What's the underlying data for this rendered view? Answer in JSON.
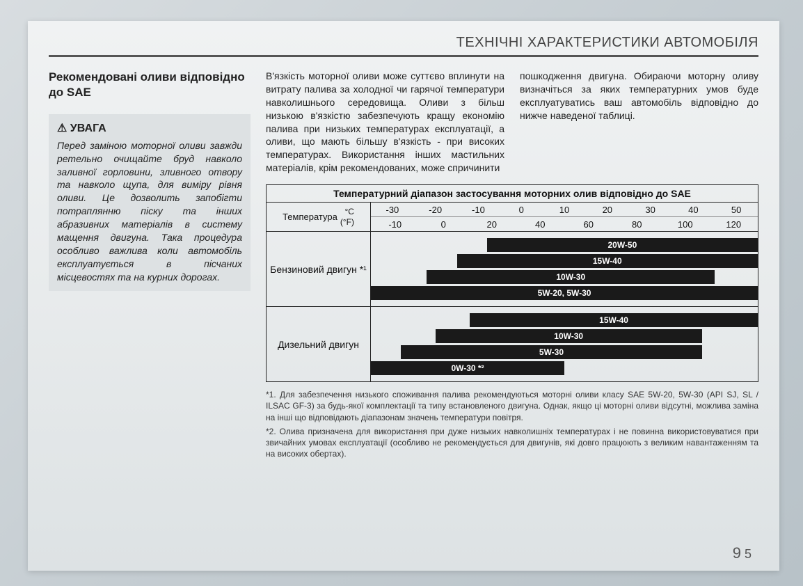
{
  "header": "ТЕХНІЧНІ ХАРАКТЕРИСТИКИ АВТОМОБІЛЯ",
  "section_title": "Рекомендовані оливи відповідно до SAE",
  "warning": {
    "title": "УВАГА",
    "body": "Перед заміною моторної оливи завжди ретельно очищайте бруд навколо заливної горловини, зливного отвору та навколо щупа, для виміру рівня оливи. Це дозволить запобігти потраплянню піску та інших абразивних матеріалів в систему мащення двигуна. Така процедура особливо важлива коли автомобіль експлуатується в пісчаних місцевостях та на курних дорогах."
  },
  "paragraphs": {
    "col1": "В'язкість моторної оливи може суттєво вплинути на витрату палива за холодної чи гарячої температури навколишнього середовища. Оливи з більш низькою в'язкістю забезпечують кращу економію палива при низьких температурах експлуатації, а оливи, що мають більшу в'язкість - при високих температурах. Використання інших мастильних матеріалів, крім рекомендованих, може спричинити",
    "col2": "пошкодження двигуна.\nОбираючи моторну оливу визначіться за яких температурних умов буде експлуатуватись ваш автомобіль відповідно до нижче наведеної таблиці."
  },
  "chart": {
    "title": "Температурний діапазон застосування моторних олив відповідно до SAE",
    "temp_label": "Температура",
    "unit_c": "°C",
    "unit_f": "(°F)",
    "scale_c": [
      "-30",
      "-20",
      "-10",
      "0",
      "10",
      "20",
      "30",
      "40",
      "50"
    ],
    "scale_f": [
      "-10",
      "0",
      "20",
      "40",
      "60",
      "80",
      "100",
      "120"
    ],
    "domain_c": {
      "min": -35,
      "max": 55
    },
    "engines": [
      {
        "label": "Бензиновий двигун *¹",
        "bars": [
          {
            "label": "20W-50",
            "from": -8,
            "to": 55
          },
          {
            "label": "15W-40",
            "from": -15,
            "to": 55
          },
          {
            "label": "10W-30",
            "from": -22,
            "to": 45
          },
          {
            "label": "5W-20, 5W-30",
            "from": -35,
            "to": 55
          }
        ]
      },
      {
        "label": "Дизельний двигун",
        "bars": [
          {
            "label": "15W-40",
            "from": -12,
            "to": 55
          },
          {
            "label": "10W-30",
            "from": -20,
            "to": 42
          },
          {
            "label": "5W-30",
            "from": -28,
            "to": 42
          },
          {
            "label": "0W-30 *²",
            "from": -35,
            "to": 10
          }
        ]
      }
    ],
    "bar_bg": "#1a1a1a",
    "bar_fg": "#ffffff"
  },
  "footnotes": [
    "*1. Для забезпечення низького споживання палива рекомендуються моторні оливи класу SAE 5W-20, 5W-30 (API SJ, SL / ILSAC GF-3)  за будь-якої комплектації та типу встановленого двигуна. Однак, якщо ці моторні оливи відсутні, можлива заміна на інші що відповідають діапазонам значень температури повітря.",
    "*2. Олива призначена для використання при дуже низьких навколишніх температурах і не повинна використовуватися при звичайних умовах експлуатації (особливо не рекомендується для двигунів, які довго працюють з великим навантаженням та на високих обертах)."
  ],
  "page_number": {
    "chapter": "9",
    "page": "5"
  }
}
